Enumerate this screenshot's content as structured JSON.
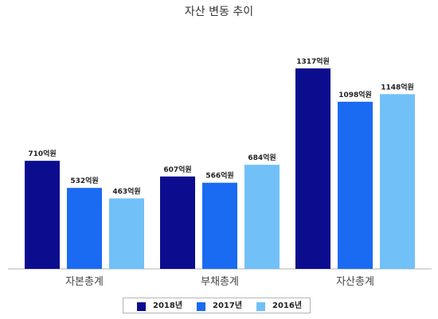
{
  "chart_data": {
    "type": "bar",
    "title": "자산 변동 추이",
    "categories": [
      "자본총계",
      "부채총계",
      "자산총계"
    ],
    "series": [
      {
        "name": "2018년",
        "color": "#0c0c8f",
        "values": [
          710,
          607,
          1317
        ],
        "labels": [
          "710억원",
          "607억원",
          "1317억원"
        ]
      },
      {
        "name": "2017년",
        "color": "#1b6af2",
        "values": [
          532,
          566,
          1098
        ],
        "labels": [
          "532억원",
          "566억원",
          "1098억원"
        ]
      },
      {
        "name": "2016년",
        "color": "#72c0f8",
        "values": [
          463,
          684,
          1148
        ],
        "labels": [
          "463억원",
          "684억원",
          "1148억원"
        ]
      }
    ],
    "ylim": [
      0,
      1600
    ],
    "grid": false,
    "legend_position": "bottom"
  }
}
